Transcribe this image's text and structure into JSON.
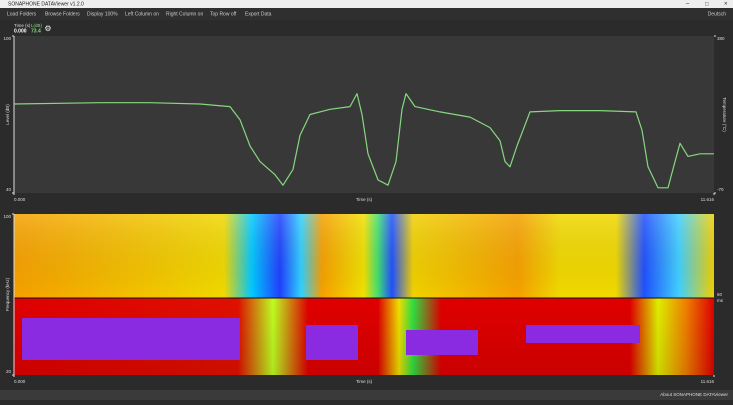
{
  "window": {
    "title": "SONAPHONE DATAViewer v1.2.0"
  },
  "menu": {
    "items": [
      "Load Folders",
      "Browse Folders",
      "Display 100%",
      "Left Column on",
      "Right Column on",
      "Top Row off",
      "Export Data"
    ],
    "language": "Deutsch"
  },
  "readout": {
    "time_label": "Time (s)",
    "time_value": "0.000",
    "level_label": "L(dB)",
    "level_value": "73.4"
  },
  "chart_data": [
    {
      "type": "line",
      "xlabel": "Time (s)",
      "ylabel": "Level (dB)",
      "y2label": "Temperature (°C)",
      "x": [
        0,
        1.427,
        2.257,
        3.087,
        3.584,
        3.75,
        3.916,
        4.082,
        4.331,
        4.464,
        4.63,
        4.746,
        4.912,
        5.244,
        5.576,
        5.692,
        5.775,
        5.875,
        6.041,
        6.207,
        6.339,
        6.439,
        6.505,
        6.654,
        7.069,
        7.567,
        7.899,
        8.065,
        8.148,
        8.231,
        8.347,
        8.563,
        9.061,
        9.724,
        10.322,
        10.421,
        10.521,
        10.687,
        10.853,
        10.969,
        11.052,
        11.185,
        11.384,
        11.616
      ],
      "series": [
        {
          "color": "#86d87e",
          "values": [
            74,
            74.5,
            74.5,
            74,
            73,
            68,
            58,
            52,
            47,
            43,
            49,
            62,
            70,
            72,
            73,
            78,
            70,
            55,
            45,
            43,
            52,
            72,
            78,
            73,
            71,
            69,
            65,
            60,
            52,
            50,
            58,
            71,
            71.5,
            71.5,
            71,
            64,
            50,
            42,
            42,
            52,
            59,
            54,
            55,
            55
          ]
        }
      ],
      "xlim": [
        0,
        11.616
      ],
      "xticks": [
        {
          "value": 0,
          "label": "0.000"
        },
        11.616
      ],
      "ylim": [
        40,
        100
      ],
      "yticks": [
        40,
        100
      ],
      "y2lim": [
        -70,
        380
      ],
      "y2ticks": [
        -70,
        380
      ]
    },
    {
      "type": "heatmap",
      "xlabel": "Time (s)",
      "ylabel": "Frequency (kHz)",
      "xlim": [
        0,
        11.616
      ],
      "xticks": [
        {
          "value": 0,
          "label": "0.000"
        },
        11.616
      ],
      "ylim": [
        20,
        100
      ],
      "yticks": [
        20,
        100
      ],
      "right_labels": [
        "60",
        "ms"
      ]
    }
  ],
  "status": {
    "about": "About SONAPHONE DATAViewer"
  }
}
